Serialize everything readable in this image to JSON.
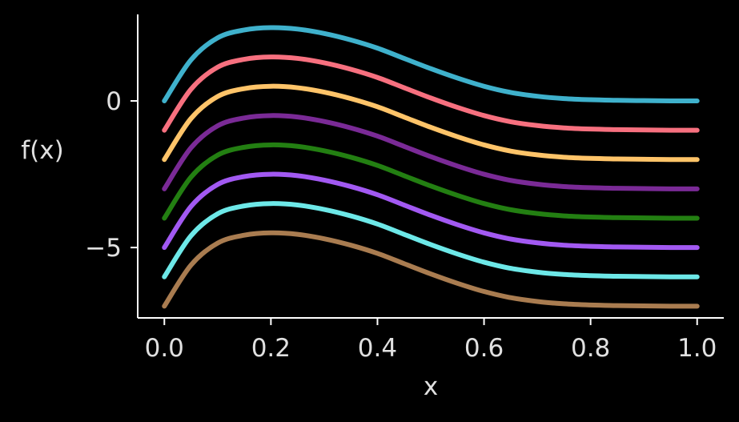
{
  "chart_data": {
    "type": "line",
    "title": "",
    "xlabel": "x",
    "ylabel": "f(x)",
    "xlim": [
      -0.05,
      1.05
    ],
    "ylim": [
      -7.4,
      2.95
    ],
    "xticks": [
      0.0,
      0.2,
      0.4,
      0.6,
      0.8,
      1.0
    ],
    "xtick_labels": [
      "0.0",
      "0.2",
      "0.4",
      "0.6",
      "0.8",
      "1.0"
    ],
    "yticks": [
      0,
      -5
    ],
    "ytick_labels": [
      "0",
      "−5"
    ],
    "grid": false,
    "legend": "none",
    "x": [
      0.0,
      0.05,
      0.1,
      0.15,
      0.2,
      0.25,
      0.3,
      0.35,
      0.4,
      0.45,
      0.5,
      0.55,
      0.6,
      0.65,
      0.7,
      0.75,
      0.8,
      0.85,
      0.9,
      0.95,
      1.0
    ],
    "series": [
      {
        "color": "#3fb1cc",
        "values": [
          0.0,
          1.4,
          2.15,
          2.42,
          2.5,
          2.45,
          2.3,
          2.08,
          1.8,
          1.45,
          1.1,
          0.78,
          0.5,
          0.29,
          0.16,
          0.08,
          0.04,
          0.02,
          0.01,
          0.0,
          0.0
        ]
      },
      {
        "color": "#f7707f",
        "values": [
          -1.0,
          0.4,
          1.15,
          1.42,
          1.5,
          1.45,
          1.3,
          1.08,
          0.8,
          0.45,
          0.1,
          -0.22,
          -0.5,
          -0.71,
          -0.84,
          -0.92,
          -0.96,
          -0.98,
          -0.99,
          -1.0,
          -1.0
        ]
      },
      {
        "color": "#ffc469",
        "values": [
          -2.0,
          -0.6,
          0.15,
          0.42,
          0.5,
          0.45,
          0.3,
          0.08,
          -0.2,
          -0.55,
          -0.9,
          -1.22,
          -1.5,
          -1.71,
          -1.84,
          -1.92,
          -1.96,
          -1.98,
          -1.99,
          -2.0,
          -2.0
        ]
      },
      {
        "color": "#7a2a96",
        "values": [
          -3.0,
          -1.6,
          -0.85,
          -0.58,
          -0.5,
          -0.55,
          -0.7,
          -0.92,
          -1.2,
          -1.55,
          -1.9,
          -2.22,
          -2.5,
          -2.71,
          -2.84,
          -2.92,
          -2.96,
          -2.98,
          -2.99,
          -3.0,
          -3.0
        ]
      },
      {
        "color": "#237f12",
        "values": [
          -4.0,
          -2.6,
          -1.85,
          -1.58,
          -1.5,
          -1.55,
          -1.7,
          -1.92,
          -2.2,
          -2.55,
          -2.9,
          -3.22,
          -3.5,
          -3.71,
          -3.84,
          -3.92,
          -3.96,
          -3.98,
          -3.99,
          -4.0,
          -4.0
        ]
      },
      {
        "color": "#a259f2",
        "values": [
          -5.0,
          -3.6,
          -2.85,
          -2.58,
          -2.5,
          -2.55,
          -2.7,
          -2.92,
          -3.2,
          -3.55,
          -3.9,
          -4.22,
          -4.5,
          -4.71,
          -4.84,
          -4.92,
          -4.96,
          -4.98,
          -4.99,
          -5.0,
          -5.0
        ]
      },
      {
        "color": "#6de8e8",
        "values": [
          -6.0,
          -4.6,
          -3.85,
          -3.58,
          -3.5,
          -3.55,
          -3.7,
          -3.92,
          -4.2,
          -4.55,
          -4.9,
          -5.22,
          -5.5,
          -5.71,
          -5.84,
          -5.92,
          -5.96,
          -5.98,
          -5.99,
          -6.0,
          -6.0
        ]
      },
      {
        "color": "#a97c50",
        "values": [
          -7.0,
          -5.6,
          -4.85,
          -4.58,
          -4.5,
          -4.55,
          -4.7,
          -4.92,
          -5.2,
          -5.55,
          -5.9,
          -6.22,
          -6.5,
          -6.71,
          -6.84,
          -6.92,
          -6.96,
          -6.98,
          -6.99,
          -7.0,
          -7.0
        ]
      }
    ],
    "colors": {
      "background": "#000000",
      "axis": "#ffffff",
      "text": "#e0e0e0"
    }
  }
}
